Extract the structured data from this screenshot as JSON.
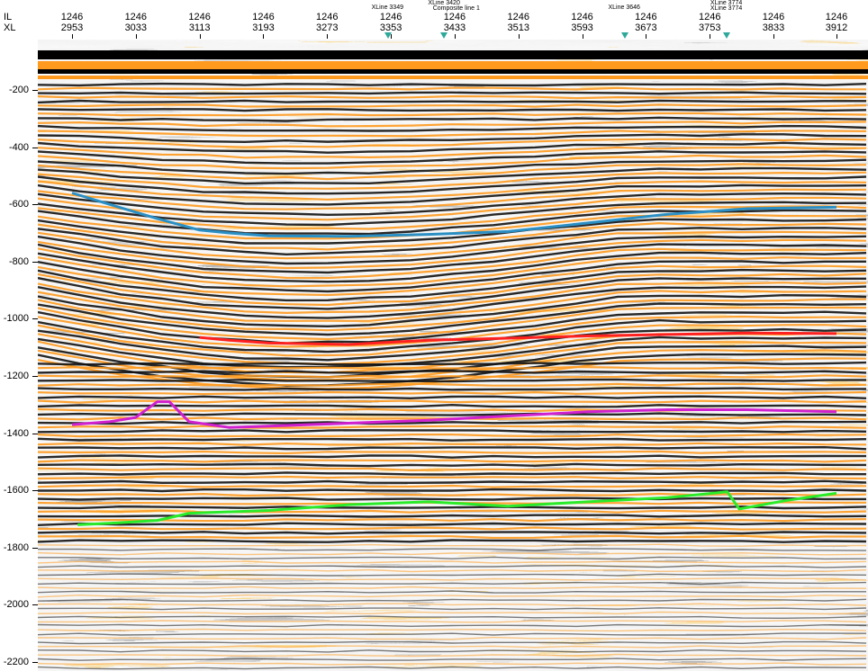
{
  "axes": {
    "il_label": "IL",
    "xl_label": "XL",
    "x_ticks": [
      {
        "il": "1246",
        "xl": "2953"
      },
      {
        "il": "1246",
        "xl": "3033"
      },
      {
        "il": "1246",
        "xl": "3113"
      },
      {
        "il": "1246",
        "xl": "3193"
      },
      {
        "il": "1246",
        "xl": "3273"
      },
      {
        "il": "1246",
        "xl": "3353"
      },
      {
        "il": "1246",
        "xl": "3433"
      },
      {
        "il": "1246",
        "xl": "3513"
      },
      {
        "il": "1246",
        "xl": "3593"
      },
      {
        "il": "1246",
        "xl": "3673"
      },
      {
        "il": "1246",
        "xl": "3753"
      },
      {
        "il": "1246",
        "xl": "3833"
      },
      {
        "il": "1246",
        "xl": "3912"
      }
    ],
    "y_ticks": [
      "-200",
      "-400",
      "-600",
      "-800",
      "-1000",
      "-1200",
      "-1400",
      "-1600",
      "-1800",
      "-2000",
      "-2200"
    ],
    "y_range": [
      -20,
      -2220
    ]
  },
  "markers": [
    {
      "label": "XLine 3349",
      "xl": 3349
    },
    {
      "label": "XLine 3420",
      "xl": 3420
    },
    {
      "label": "Composite line 1",
      "xl": 3426
    },
    {
      "label": "XLine 3646",
      "xl": 3646
    },
    {
      "label": "XLine 3774",
      "xl": 3774
    },
    {
      "label": "XLine 3774",
      "xl": 3774
    }
  ],
  "horizons": [
    {
      "color": "#2a8fc4",
      "points": [
        [
          2953,
          -560
        ],
        [
          3000,
          -600
        ],
        [
          3060,
          -650
        ],
        [
          3113,
          -690
        ],
        [
          3150,
          -700
        ],
        [
          3200,
          -710
        ],
        [
          3300,
          -712
        ],
        [
          3400,
          -705
        ],
        [
          3500,
          -695
        ],
        [
          3600,
          -665
        ],
        [
          3700,
          -635
        ],
        [
          3800,
          -615
        ],
        [
          3912,
          -610
        ]
      ]
    },
    {
      "color": "#ff2020",
      "points": [
        [
          3113,
          -1065
        ],
        [
          3150,
          -1075
        ],
        [
          3200,
          -1085
        ],
        [
          3300,
          -1090
        ],
        [
          3400,
          -1075
        ],
        [
          3500,
          -1068
        ],
        [
          3600,
          -1060
        ],
        [
          3700,
          -1055
        ],
        [
          3800,
          -1050
        ],
        [
          3912,
          -1052
        ]
      ]
    },
    {
      "color": "#d020d0",
      "points": [
        [
          2953,
          -1370
        ],
        [
          3000,
          -1360
        ],
        [
          3033,
          -1345
        ],
        [
          3060,
          -1290
        ],
        [
          3075,
          -1290
        ],
        [
          3100,
          -1360
        ],
        [
          3150,
          -1380
        ],
        [
          3200,
          -1375
        ],
        [
          3300,
          -1365
        ],
        [
          3400,
          -1355
        ],
        [
          3500,
          -1340
        ],
        [
          3600,
          -1325
        ],
        [
          3700,
          -1318
        ],
        [
          3800,
          -1318
        ],
        [
          3912,
          -1325
        ]
      ]
    },
    {
      "color": "#2aeb2a",
      "points": [
        [
          2960,
          -1720
        ],
        [
          3000,
          -1715
        ],
        [
          3060,
          -1705
        ],
        [
          3100,
          -1680
        ],
        [
          3200,
          -1670
        ],
        [
          3300,
          -1650
        ],
        [
          3400,
          -1640
        ],
        [
          3500,
          -1655
        ],
        [
          3600,
          -1640
        ],
        [
          3700,
          -1625
        ],
        [
          3775,
          -1605
        ],
        [
          3790,
          -1665
        ],
        [
          3850,
          -1635
        ],
        [
          3912,
          -1610
        ]
      ]
    }
  ],
  "colors": {
    "positive": "#ff9a1e",
    "negative": "#000000",
    "background": "#f2f2f2"
  }
}
